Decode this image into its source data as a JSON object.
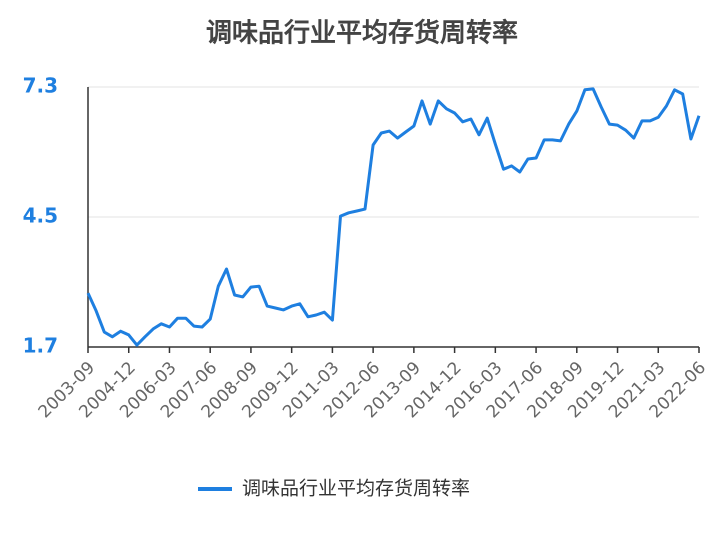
{
  "chart_data": {
    "type": "line",
    "title": "调味品行业平均存货周转率",
    "categories": [
      "2003-09",
      null,
      null,
      null,
      null,
      "2004-12",
      null,
      null,
      null,
      null,
      "2006-03",
      null,
      null,
      null,
      null,
      "2007-06",
      null,
      null,
      null,
      null,
      "2008-09",
      null,
      null,
      null,
      null,
      "2009-12",
      null,
      null,
      null,
      null,
      "2011-03",
      null,
      null,
      null,
      null,
      "2012-06",
      null,
      null,
      null,
      null,
      "2013-09",
      null,
      null,
      null,
      null,
      "2014-12",
      null,
      null,
      null,
      null,
      "2016-03",
      null,
      null,
      null,
      null,
      "2017-06",
      null,
      null,
      null,
      null,
      "2018-09",
      null,
      null,
      null,
      null,
      "2019-12",
      null,
      null,
      null,
      null,
      "2021-03",
      null,
      null,
      null,
      null,
      "2022-06"
    ],
    "series": [
      {
        "name": "调味品行业平均存货周转率",
        "color": "#1e7fe0",
        "values": [
          2.86,
          2.48,
          2.02,
          1.92,
          2.04,
          1.96,
          1.74,
          1.92,
          2.09,
          2.2,
          2.13,
          2.32,
          2.32,
          2.15,
          2.13,
          2.3,
          3.01,
          3.38,
          2.82,
          2.78,
          2.99,
          3.01,
          2.58,
          2.54,
          2.5,
          2.58,
          2.63,
          2.35,
          2.39,
          2.45,
          2.28,
          4.52,
          4.59,
          4.63,
          4.67,
          6.05,
          6.31,
          6.35,
          6.2,
          6.33,
          6.46,
          7.0,
          6.5,
          7.0,
          6.83,
          6.74,
          6.55,
          6.61,
          6.27,
          6.63,
          6.07,
          5.53,
          5.6,
          5.47,
          5.75,
          5.77,
          6.16,
          6.16,
          6.14,
          6.5,
          6.78,
          7.24,
          7.26,
          6.87,
          6.5,
          6.48,
          6.37,
          6.2,
          6.57,
          6.57,
          6.65,
          6.89,
          7.24,
          7.15,
          6.18,
          6.68
        ]
      }
    ],
    "ylim": [
      1.7,
      7.3
    ],
    "yticks": [
      1.7,
      4.5,
      7.3
    ],
    "grid": true,
    "legend": "bottom"
  }
}
